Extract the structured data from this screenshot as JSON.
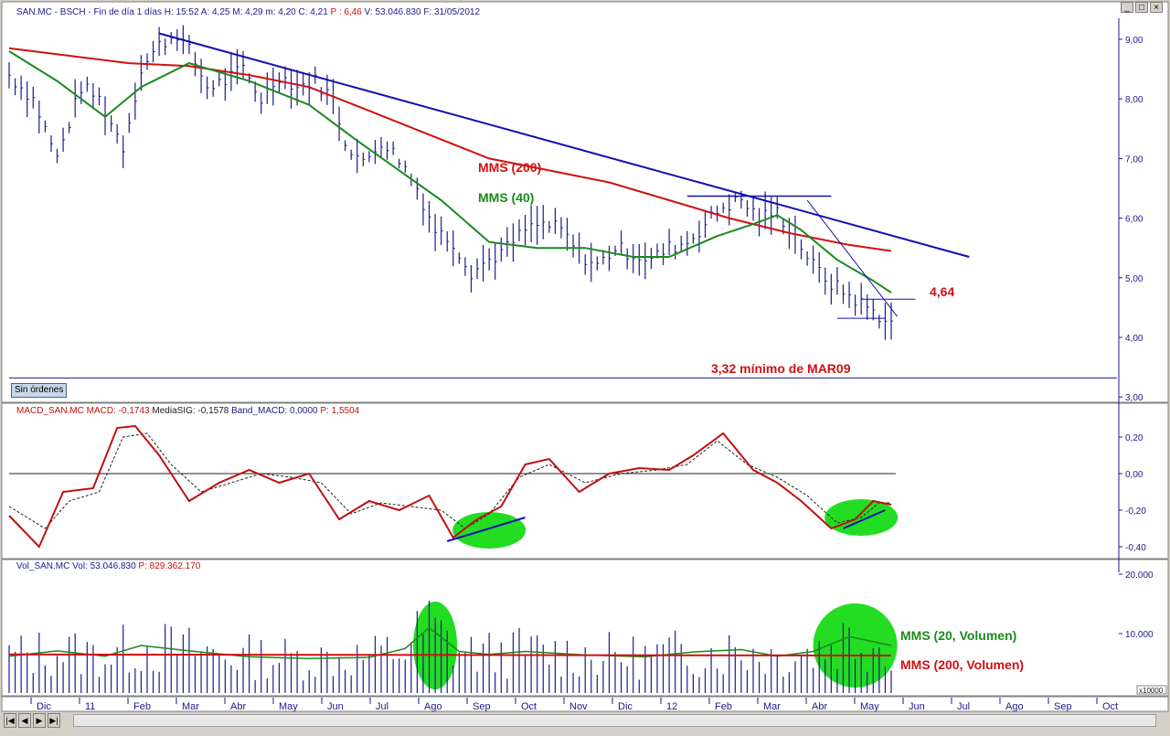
{
  "price_header": {
    "segments": [
      {
        "text": "SAN.MC - BSCH - Fin de día 1 días",
        "color": "#1a1a8c"
      },
      {
        "text": "H: 15:52",
        "color": "#1a1a8c"
      },
      {
        "text": "A: 4,25",
        "color": "#1a1a8c"
      },
      {
        "text": "M: 4,29",
        "color": "#1a1a8c"
      },
      {
        "text": "m: 4,20",
        "color": "#1a1a8c"
      },
      {
        "text": "C: 4,21",
        "color": "#1a1a8c"
      },
      {
        "text": "P : 6,46",
        "color": "#d01010"
      },
      {
        "text": "V: 53.046.830",
        "color": "#1a1a8c"
      },
      {
        "text": "F: 31/05/2012",
        "color": "#1a1a8c"
      }
    ]
  },
  "macd_header": {
    "segments": [
      {
        "text": "MACD_SAN.MC",
        "color": "#c01010"
      },
      {
        "text": "MACD: -0,1743",
        "color": "#c01010"
      },
      {
        "text": "MediaSIG: -0,1578",
        "color": "#202020"
      },
      {
        "text": "Band_MACD: 0,0000",
        "color": "#1a1a8c"
      },
      {
        "text": "P: 1,5504",
        "color": "#c01010"
      }
    ]
  },
  "vol_header": {
    "segments": [
      {
        "text": "Vol_SAN.MC",
        "color": "#1a1a8c"
      },
      {
        "text": "Vol: 53.046.830",
        "color": "#1a1a8c"
      },
      {
        "text": "P: 829.362.170",
        "color": "#c01010"
      }
    ]
  },
  "window_buttons": [
    "_",
    "□",
    "×"
  ],
  "sin_ordenes": "Sin órdenes",
  "nav_buttons": [
    "|◀",
    "◀",
    "▶",
    "▶|"
  ],
  "annotations": {
    "mms200": "MMS (200)",
    "mms40": "MMS (40)",
    "level": "4,64",
    "min_note": "3,32 mínimo de MAR09",
    "vol20": "MMS (20, Volumen)",
    "vol200": "MMS (200, Volumen)"
  },
  "colors": {
    "price_bars": "#1a1a8c",
    "mms200": "#d01010",
    "mms40": "#1a8a1a",
    "trendline": "#1010b0",
    "macd": "#c01010",
    "signal": "#202020",
    "volume": "#1a1a8c",
    "highlight": "#22dd22"
  },
  "chart_data": [
    {
      "type": "bar",
      "title": "SAN.MC - BSCH - Fin de día 1 días",
      "x_axis_labels": [
        "Dic",
        "11",
        "Feb",
        "Mar",
        "Abr",
        "May",
        "Jun",
        "Jul",
        "Ago",
        "Sep",
        "Oct",
        "Nov",
        "Dic",
        "12",
        "Feb",
        "Mar",
        "Abr",
        "May",
        "Jun",
        "Jul",
        "Ago",
        "Sep",
        "Oct"
      ],
      "ylim": [
        3.0,
        9.2
      ],
      "y_ticks": [
        "3,00",
        "4,00",
        "5,00",
        "6,00",
        "7,00",
        "8,00",
        "9,00"
      ],
      "price_path": [
        [
          0,
          8.4
        ],
        [
          4,
          8.0
        ],
        [
          8,
          7.0
        ],
        [
          12,
          8.2
        ],
        [
          15,
          8.0
        ],
        [
          19,
          7.2
        ],
        [
          22,
          8.5
        ],
        [
          25,
          8.9
        ],
        [
          28,
          9.1
        ],
        [
          30,
          8.8
        ],
        [
          33,
          8.2
        ],
        [
          36,
          8.3
        ],
        [
          39,
          8.5
        ],
        [
          42,
          8.0
        ],
        [
          45,
          8.4
        ],
        [
          48,
          8.2
        ],
        [
          51,
          8.3
        ],
        [
          54,
          8.0
        ],
        [
          56,
          7.3
        ],
        [
          59,
          6.9
        ],
        [
          62,
          7.3
        ],
        [
          65,
          7.0
        ],
        [
          68,
          6.5
        ],
        [
          71,
          5.8
        ],
        [
          74,
          5.6
        ],
        [
          77,
          5.1
        ],
        [
          80,
          5.3
        ],
        [
          83,
          5.5
        ],
        [
          86,
          5.8
        ],
        [
          89,
          5.9
        ],
        [
          92,
          5.8
        ],
        [
          95,
          5.4
        ],
        [
          98,
          5.2
        ],
        [
          101,
          5.5
        ],
        [
          104,
          5.4
        ],
        [
          107,
          5.3
        ],
        [
          110,
          5.5
        ],
        [
          113,
          5.6
        ],
        [
          116,
          5.9
        ],
        [
          119,
          6.2
        ],
        [
          122,
          6.3
        ],
        [
          125,
          6.0
        ],
        [
          128,
          6.1
        ],
        [
          131,
          5.7
        ],
        [
          134,
          5.2
        ],
        [
          137,
          4.9
        ],
        [
          140,
          4.7
        ],
        [
          143,
          4.5
        ],
        [
          146,
          4.3
        ],
        [
          147,
          4.21
        ]
      ],
      "mms200_path": [
        [
          0,
          8.85
        ],
        [
          20,
          8.6
        ],
        [
          30,
          8.55
        ],
        [
          40,
          8.4
        ],
        [
          50,
          8.2
        ],
        [
          60,
          7.8
        ],
        [
          70,
          7.4
        ],
        [
          80,
          7.0
        ],
        [
          90,
          6.8
        ],
        [
          100,
          6.6
        ],
        [
          110,
          6.3
        ],
        [
          120,
          6.0
        ],
        [
          130,
          5.75
        ],
        [
          140,
          5.55
        ],
        [
          147,
          5.45
        ]
      ],
      "mms40_path": [
        [
          0,
          8.8
        ],
        [
          8,
          8.3
        ],
        [
          16,
          7.7
        ],
        [
          22,
          8.2
        ],
        [
          30,
          8.6
        ],
        [
          40,
          8.3
        ],
        [
          50,
          7.9
        ],
        [
          58,
          7.3
        ],
        [
          65,
          6.8
        ],
        [
          72,
          6.3
        ],
        [
          80,
          5.6
        ],
        [
          88,
          5.5
        ],
        [
          96,
          5.5
        ],
        [
          104,
          5.35
        ],
        [
          110,
          5.35
        ],
        [
          118,
          5.7
        ],
        [
          124,
          5.9
        ],
        [
          128,
          6.05
        ],
        [
          132,
          5.8
        ],
        [
          138,
          5.3
        ],
        [
          144,
          4.95
        ],
        [
          147,
          4.75
        ]
      ],
      "trendline": [
        [
          25,
          9.1
        ],
        [
          160,
          5.35
        ]
      ],
      "resistance": [
        [
          113,
          6.37
        ],
        [
          137,
          6.37
        ]
      ],
      "level_4_64": [
        [
          142,
          4.64
        ],
        [
          151,
          4.64
        ]
      ],
      "support": [
        [
          138,
          4.32
        ],
        [
          146,
          4.32
        ]
      ],
      "bottom_line": 3.32,
      "n_days": 148
    },
    {
      "type": "line",
      "title": "MACD_SAN.MC",
      "ylim": [
        -0.45,
        0.3
      ],
      "y_ticks": [
        "0,20",
        "0,00",
        "-0,20",
        "-0,40"
      ],
      "zero_line": 0.0,
      "macd_path": [
        [
          0,
          -0.23
        ],
        [
          5,
          -0.4
        ],
        [
          9,
          -0.1
        ],
        [
          14,
          -0.08
        ],
        [
          18,
          0.25
        ],
        [
          21,
          0.26
        ],
        [
          25,
          0.1
        ],
        [
          30,
          -0.15
        ],
        [
          35,
          -0.05
        ],
        [
          40,
          0.02
        ],
        [
          45,
          -0.05
        ],
        [
          50,
          0.0
        ],
        [
          55,
          -0.25
        ],
        [
          60,
          -0.15
        ],
        [
          65,
          -0.2
        ],
        [
          70,
          -0.12
        ],
        [
          74,
          -0.35
        ],
        [
          78,
          -0.25
        ],
        [
          82,
          -0.18
        ],
        [
          86,
          0.05
        ],
        [
          90,
          0.08
        ],
        [
          95,
          -0.1
        ],
        [
          100,
          0.0
        ],
        [
          105,
          0.03
        ],
        [
          110,
          0.02
        ],
        [
          114,
          0.1
        ],
        [
          119,
          0.22
        ],
        [
          124,
          0.02
        ],
        [
          128,
          -0.05
        ],
        [
          132,
          -0.15
        ],
        [
          137,
          -0.3
        ],
        [
          141,
          -0.25
        ],
        [
          144,
          -0.15
        ],
        [
          147,
          -0.17
        ]
      ],
      "signal_path": [
        [
          0,
          -0.18
        ],
        [
          6,
          -0.3
        ],
        [
          10,
          -0.15
        ],
        [
          15,
          -0.1
        ],
        [
          19,
          0.2
        ],
        [
          23,
          0.22
        ],
        [
          27,
          0.05
        ],
        [
          32,
          -0.1
        ],
        [
          37,
          -0.05
        ],
        [
          42,
          0.0
        ],
        [
          47,
          -0.02
        ],
        [
          52,
          -0.05
        ],
        [
          57,
          -0.22
        ],
        [
          62,
          -0.16
        ],
        [
          67,
          -0.18
        ],
        [
          72,
          -0.2
        ],
        [
          76,
          -0.3
        ],
        [
          80,
          -0.22
        ],
        [
          85,
          -0.02
        ],
        [
          90,
          0.05
        ],
        [
          96,
          -0.05
        ],
        [
          102,
          0.0
        ],
        [
          108,
          0.02
        ],
        [
          113,
          0.05
        ],
        [
          118,
          0.18
        ],
        [
          123,
          0.05
        ],
        [
          128,
          -0.02
        ],
        [
          133,
          -0.12
        ],
        [
          138,
          -0.27
        ],
        [
          142,
          -0.24
        ],
        [
          145,
          -0.16
        ],
        [
          147,
          -0.16
        ]
      ],
      "divergence_lines": [
        [
          [
            73,
            -0.37
          ],
          [
            86,
            -0.24
          ]
        ],
        [
          [
            139,
            -0.3
          ],
          [
            146,
            -0.2
          ]
        ]
      ],
      "highlights": [
        [
          80,
          -0.31
        ],
        [
          142,
          -0.24
        ]
      ]
    },
    {
      "type": "bar",
      "title": "Vol_SAN.MC",
      "ylim": [
        0,
        20000
      ],
      "y_ticks": [
        "20.000",
        "10.000"
      ],
      "unit": "x10000",
      "mms20_path": [
        [
          0,
          6200
        ],
        [
          8,
          7100
        ],
        [
          16,
          6200
        ],
        [
          22,
          8000
        ],
        [
          30,
          7100
        ],
        [
          40,
          6100
        ],
        [
          50,
          5800
        ],
        [
          60,
          6000
        ],
        [
          66,
          7500
        ],
        [
          70,
          11000
        ],
        [
          75,
          7000
        ],
        [
          80,
          6500
        ],
        [
          86,
          7000
        ],
        [
          96,
          6400
        ],
        [
          106,
          6100
        ],
        [
          114,
          6900
        ],
        [
          122,
          7300
        ],
        [
          128,
          6200
        ],
        [
          134,
          7000
        ],
        [
          140,
          9500
        ],
        [
          147,
          8000
        ]
      ],
      "mms200_vol_path": [
        [
          0,
          6500
        ],
        [
          147,
          6300
        ]
      ],
      "highlights": [
        [
          71,
          8000
        ],
        [
          141,
          8000
        ]
      ]
    }
  ]
}
